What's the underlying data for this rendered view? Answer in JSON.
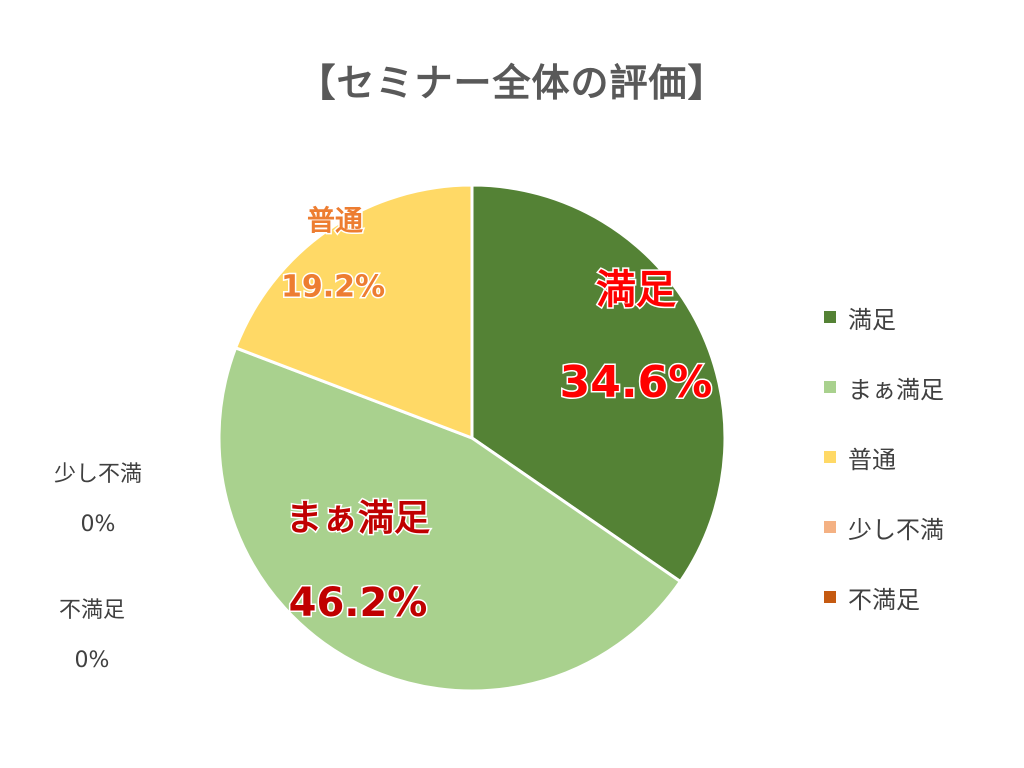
{
  "chart_data": {
    "type": "pie",
    "title": "【セミナー全体の評価】",
    "slices": [
      {
        "name": "満足",
        "value": 34.6,
        "label": "34.6%",
        "color": "#548235"
      },
      {
        "name": "まぁ満足",
        "value": 46.2,
        "label": "46.2%",
        "color": "#A9D18E"
      },
      {
        "name": "普通",
        "value": 19.2,
        "label": "19.2%",
        "color": "#FFD966"
      },
      {
        "name": "少し不満",
        "value": 0,
        "label": "0%",
        "color": "#F4B183"
      },
      {
        "name": "不満足",
        "value": 0,
        "label": "0%",
        "color": "#C55A11"
      }
    ],
    "legend_position": "right",
    "label_colors": {
      "large": "#FF0000",
      "medium": "#C00000",
      "small": "#ED7D31",
      "zero": "#404040"
    }
  }
}
